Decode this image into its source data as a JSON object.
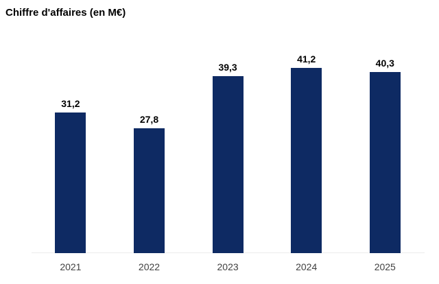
{
  "title": "Chiffre d'affaires (en M€)",
  "colors": {
    "bar": "#0e2a63",
    "title_text": "#000000",
    "value_label_text": "#000000",
    "tick_label_text": "#404040",
    "axis_line": "#ececec",
    "background": "#ffffff"
  },
  "chart_data": {
    "type": "bar",
    "title": "Chiffre d'affaires (en M€)",
    "categories": [
      "2021",
      "2022",
      "2023",
      "2024",
      "2025"
    ],
    "values": [
      31.2,
      27.8,
      39.3,
      41.2,
      40.3
    ],
    "value_labels": [
      "31,2",
      "27,8",
      "39,3",
      "41,2",
      "40,3"
    ],
    "xlabel": "",
    "ylabel": "",
    "ylim": [
      0,
      45
    ],
    "grid": false,
    "legend": false,
    "data_labels_position": "above-bar"
  }
}
